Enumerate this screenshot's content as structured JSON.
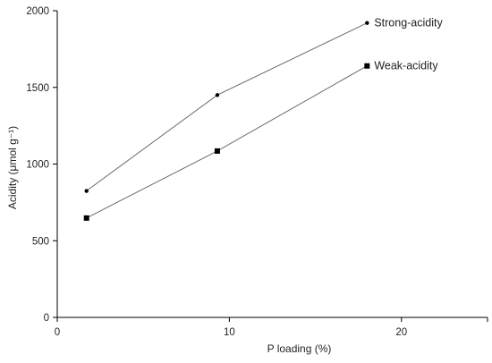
{
  "chart_data": {
    "type": "line",
    "xlabel": "P loading (%)",
    "ylabel": "Acidity (μmol g⁻¹)",
    "xlim": [
      0,
      25
    ],
    "ylim": [
      0,
      2000
    ],
    "xticks": [
      0,
      10,
      20
    ],
    "yticks": [
      0,
      500,
      1000,
      1500,
      2000
    ],
    "grid": false,
    "legend": "inline labels at line ends",
    "series": [
      {
        "name": "Strong-acidity",
        "marker": "circle",
        "x": [
          1.7,
          9.3,
          18
        ],
        "y": [
          825,
          1450,
          1920
        ]
      },
      {
        "name": "Weak-acidity",
        "marker": "square",
        "x": [
          1.7,
          9.3,
          18
        ],
        "y": [
          648,
          1085,
          1640
        ]
      }
    ]
  }
}
